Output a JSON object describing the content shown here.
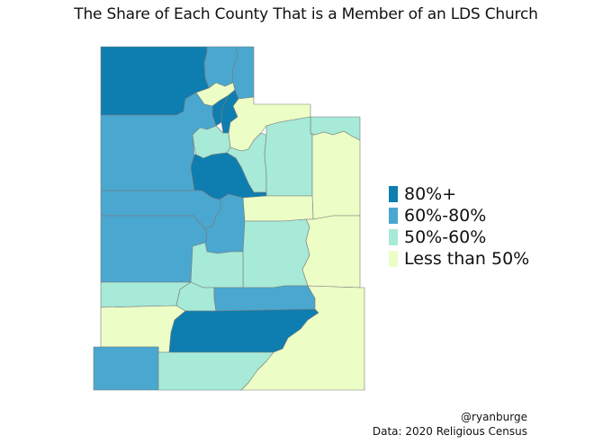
{
  "title": "The Share of Each County That is a Member of an LDS Church",
  "palette": {
    "c80plus": "#0e7eb0",
    "c60to80": "#4aa7cf",
    "c50to60": "#a6ead7",
    "clt50": "#ecfdc6",
    "border": "#7a7a7a"
  },
  "legend": [
    {
      "label": "80%+",
      "color": "#0e7eb0"
    },
    {
      "label": "60%-80%",
      "color": "#4aa7cf"
    },
    {
      "label": "50%-60%",
      "color": "#a6ead7"
    },
    {
      "label": "Less than 50%",
      "color": "#ecfdc6"
    }
  ],
  "credit": {
    "handle": "@ryanburge",
    "source": "Data: 2020 Religious Census"
  },
  "counties": [
    {
      "name": "Box Elder",
      "category": "80%+"
    },
    {
      "name": "Cache",
      "category": "60%-80%"
    },
    {
      "name": "Rich",
      "category": "60%-80%"
    },
    {
      "name": "Weber",
      "category": "Less than 50%"
    },
    {
      "name": "Morgan",
      "category": "80%+"
    },
    {
      "name": "Davis",
      "category": "80%+"
    },
    {
      "name": "Tooele",
      "category": "60%-80%"
    },
    {
      "name": "Salt Lake",
      "category": "50%-60%"
    },
    {
      "name": "Summit",
      "category": "Less than 50%"
    },
    {
      "name": "Daggett",
      "category": "50%-60%"
    },
    {
      "name": "Wasatch",
      "category": "50%-60%"
    },
    {
      "name": "Utah",
      "category": "80%+"
    },
    {
      "name": "Duchesne",
      "category": "50%-60%"
    },
    {
      "name": "Uintah",
      "category": "Less than 50%"
    },
    {
      "name": "Juab",
      "category": "60%-80%"
    },
    {
      "name": "Millard",
      "category": "60%-80%"
    },
    {
      "name": "Sanpete",
      "category": "60%-80%"
    },
    {
      "name": "Carbon",
      "category": "Less than 50%"
    },
    {
      "name": "Emery",
      "category": "50%-60%"
    },
    {
      "name": "Grand",
      "category": "Less than 50%"
    },
    {
      "name": "Sevier",
      "category": "50%-60%"
    },
    {
      "name": "Beaver",
      "category": "50%-60%"
    },
    {
      "name": "Piute",
      "category": "50%-60%"
    },
    {
      "name": "Wayne",
      "category": "60%-80%"
    },
    {
      "name": "Iron",
      "category": "Less than 50%"
    },
    {
      "name": "Garfield",
      "category": "80%+"
    },
    {
      "name": "Washington",
      "category": "60%-80%"
    },
    {
      "name": "Kane",
      "category": "50%-60%"
    },
    {
      "name": "San Juan",
      "category": "Less than 50%"
    }
  ]
}
